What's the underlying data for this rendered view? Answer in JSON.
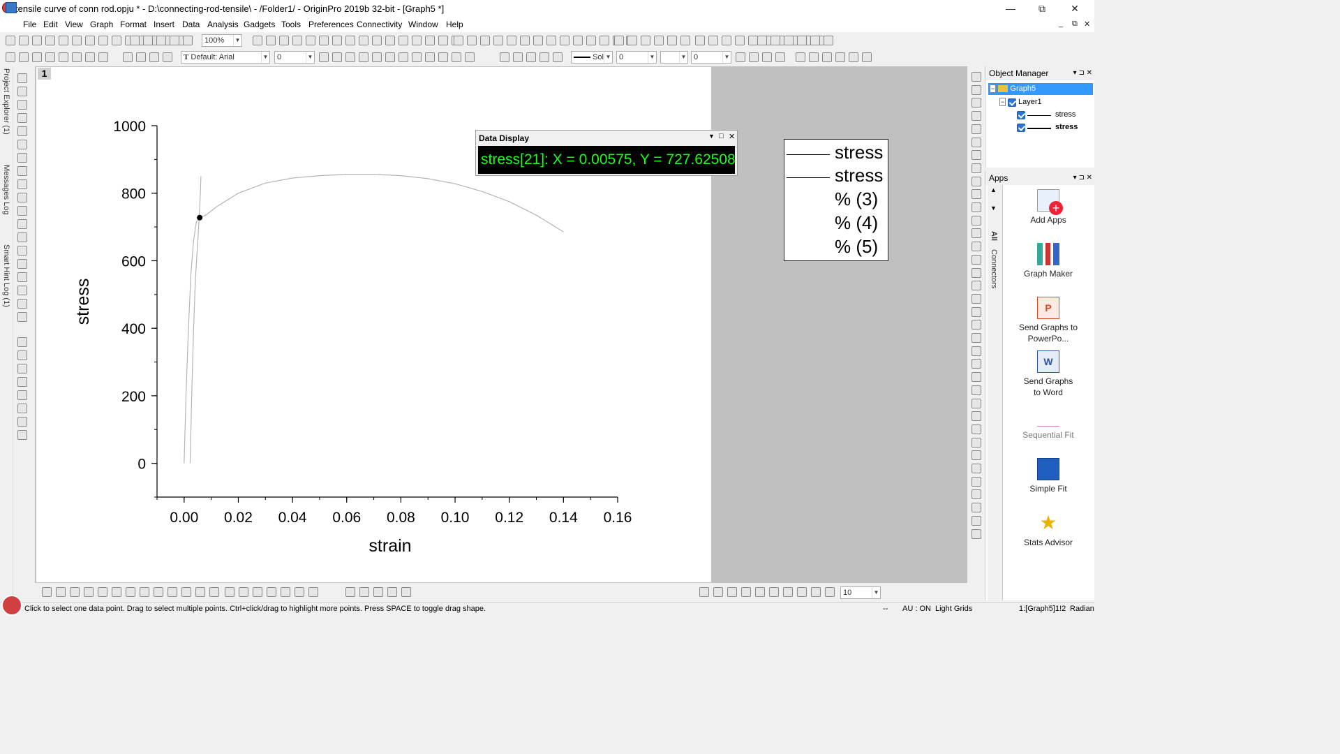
{
  "window": {
    "title": "tensile curve of conn rod.opju * - D:\\connecting-rod-tensile\\ - /Folder1/ - OriginPro 2019b 32-bit - [Graph5 *]",
    "minimize": "—",
    "restore": "⧉",
    "close": "✕"
  },
  "menu": [
    "File",
    "Edit",
    "View",
    "Graph",
    "Format",
    "Insert",
    "Data",
    "Analysis",
    "Gadgets",
    "Tools",
    "Preferences",
    "Connectivity",
    "Window",
    "Help"
  ],
  "toolbar": {
    "zoom": "100%",
    "font": "Default: Arial",
    "font_size": "0",
    "line_style": "Sol",
    "line_width": "0",
    "fill_value": "0",
    "bottom_size": "10"
  },
  "side_panels": [
    "Project Explorer (1)",
    "Messages Log",
    "Smart Hint Log (1)"
  ],
  "graph": {
    "layer_number": "1",
    "chart_data": {
      "type": "line",
      "xlabel": "strain",
      "ylabel": "stress",
      "xlim": [
        -0.01,
        0.16
      ],
      "ylim": [
        -100,
        1000
      ],
      "x_ticks": [
        "0.00",
        "0.02",
        "0.04",
        "0.06",
        "0.08",
        "0.10",
        "0.12",
        "0.14",
        "0.16"
      ],
      "y_ticks": [
        "0",
        "200",
        "400",
        "600",
        "800",
        "1000"
      ],
      "series": [
        {
          "name": "stress",
          "points": [
            [
              0.0,
              0
            ],
            [
              0.0007,
              200
            ],
            [
              0.0015,
              380
            ],
            [
              0.0025,
              560
            ],
            [
              0.0035,
              660
            ],
            [
              0.0045,
              715
            ],
            [
              0.00575,
              727.6
            ],
            [
              0.008,
              735
            ],
            [
              0.012,
              760
            ],
            [
              0.02,
              800
            ],
            [
              0.03,
              830
            ],
            [
              0.04,
              845
            ],
            [
              0.05,
              852
            ],
            [
              0.06,
              856
            ],
            [
              0.07,
              856
            ],
            [
              0.08,
              852
            ],
            [
              0.09,
              843
            ],
            [
              0.1,
              828
            ],
            [
              0.11,
              805
            ],
            [
              0.12,
              775
            ],
            [
              0.13,
              735
            ],
            [
              0.14,
              685
            ]
          ]
        },
        {
          "name": "stress",
          "points": [
            [
              0.0022,
              0
            ],
            [
              0.0028,
              200
            ],
            [
              0.0035,
              400
            ],
            [
              0.0042,
              550
            ],
            [
              0.005,
              650
            ],
            [
              0.0055,
              720
            ],
            [
              0.006,
              800
            ],
            [
              0.0062,
              850
            ]
          ]
        }
      ],
      "marker": {
        "x": 0.00575,
        "y": 727.62508
      }
    },
    "legend": [
      "stress",
      "stress",
      "% (3)",
      "% (4)",
      "% (5)"
    ]
  },
  "data_display": {
    "title": "Data Display",
    "readout": "stress[21]: X = 0.00575, Y = 727.62508"
  },
  "object_manager": {
    "title": "Object Manager",
    "graph": "Graph5",
    "layer": "Layer1",
    "plots": [
      "stress",
      "stress"
    ]
  },
  "apps": {
    "title": "Apps",
    "tabs": [
      "All",
      "Connectors"
    ],
    "items": [
      "Add Apps",
      "Graph Maker",
      "Send Graphs to PowerPo...",
      "Send Graphs to Word",
      "Sequential Fit",
      "Simple Fit",
      "Stats Advisor"
    ]
  },
  "status": {
    "hint": "Click to select one data point. Drag to select multiple points. Ctrl+click/drag to highlight more points. Press SPACE to toggle drag shape.",
    "dashes": "--",
    "au": "AU : ON",
    "grids": "Light Grids",
    "page": "1:[Graph5]1!2",
    "angle": "Radian"
  },
  "colors": {
    "readout_bg": "#000000",
    "readout_text": "#19ff19",
    "curve": "#b4b4b4",
    "mdi_bg": "#c0c0c0",
    "selection": "#3399ff"
  }
}
